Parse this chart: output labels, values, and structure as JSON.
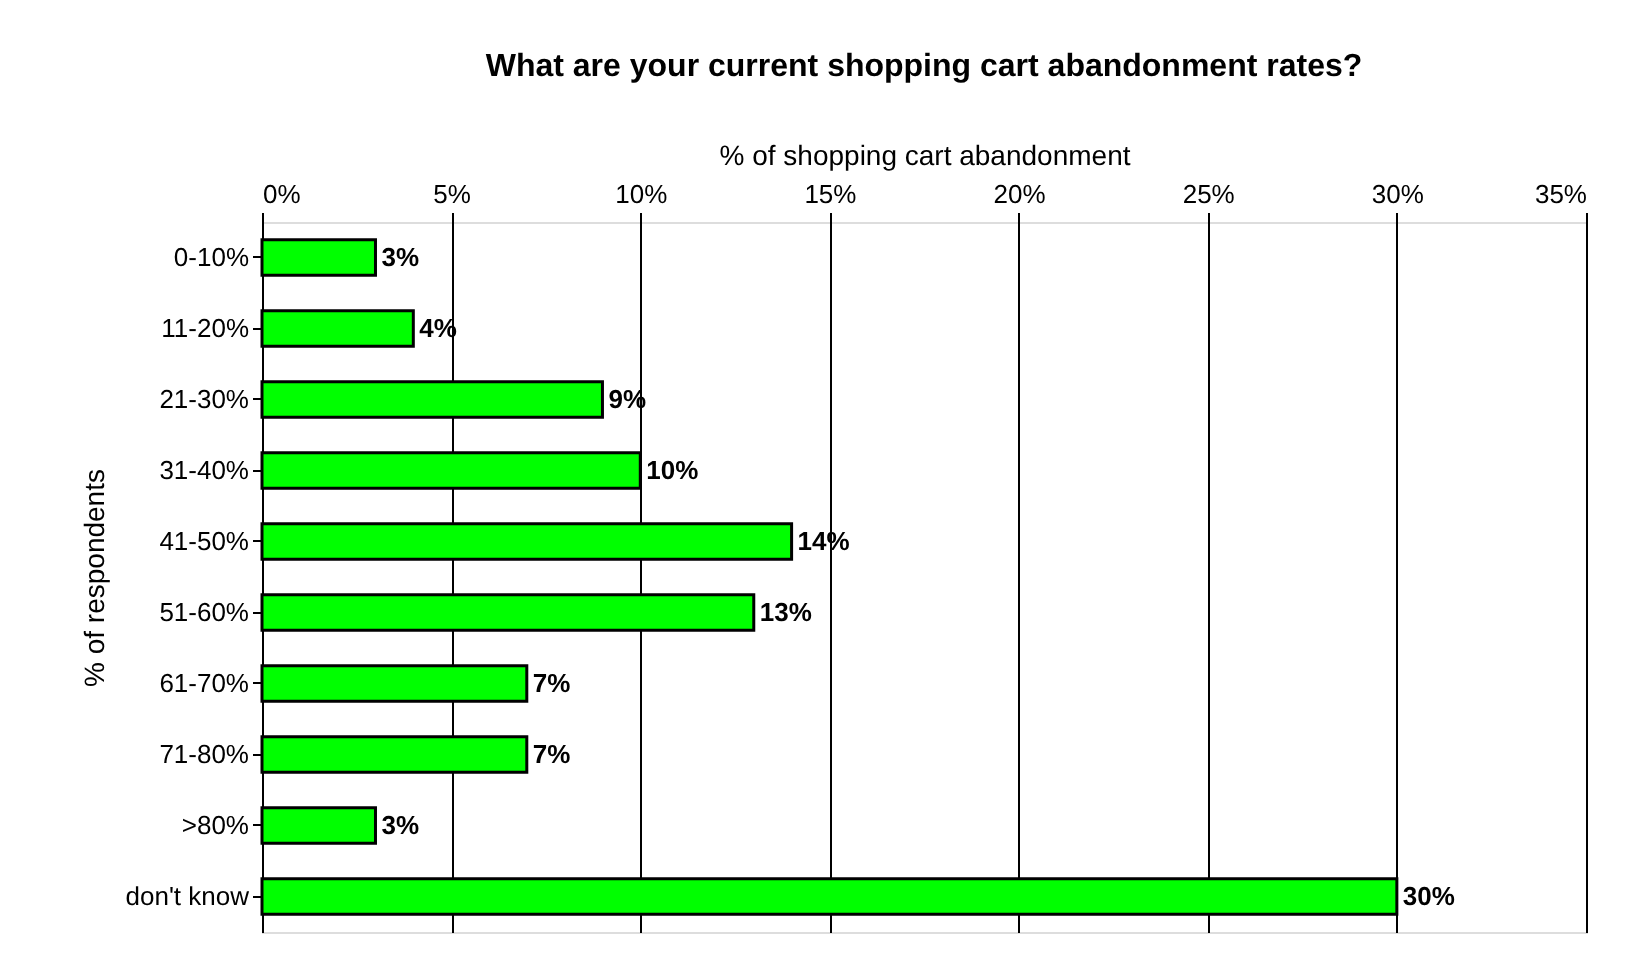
{
  "chart_data": {
    "type": "bar",
    "orientation": "horizontal",
    "title": "What are your current shopping cart abandonment rates?",
    "xlabel": "% of shopping cart abandonment",
    "ylabel": "% of respondents",
    "categories": [
      "0-10%",
      "11-20%",
      "21-30%",
      "31-40%",
      "41-50%",
      "51-60%",
      "61-70%",
      "71-80%",
      ">80%",
      "don't know"
    ],
    "values": [
      3,
      4,
      9,
      10,
      14,
      13,
      7,
      7,
      3,
      30
    ],
    "value_labels": [
      "3%",
      "4%",
      "9%",
      "10%",
      "14%",
      "13%",
      "7%",
      "7%",
      "3%",
      "30%"
    ],
    "color": "#00ff00",
    "xlim": [
      0,
      35
    ],
    "xticks": [
      {
        "value": 0,
        "label": "0%"
      },
      {
        "value": 5,
        "label": "5%"
      },
      {
        "value": 10,
        "label": "10%"
      },
      {
        "value": 15,
        "label": "15%"
      },
      {
        "value": 20,
        "label": "20%"
      },
      {
        "value": 25,
        "label": "25%"
      },
      {
        "value": 30,
        "label": "30%"
      },
      {
        "value": 35,
        "label": "35%"
      }
    ],
    "grid": "x"
  }
}
